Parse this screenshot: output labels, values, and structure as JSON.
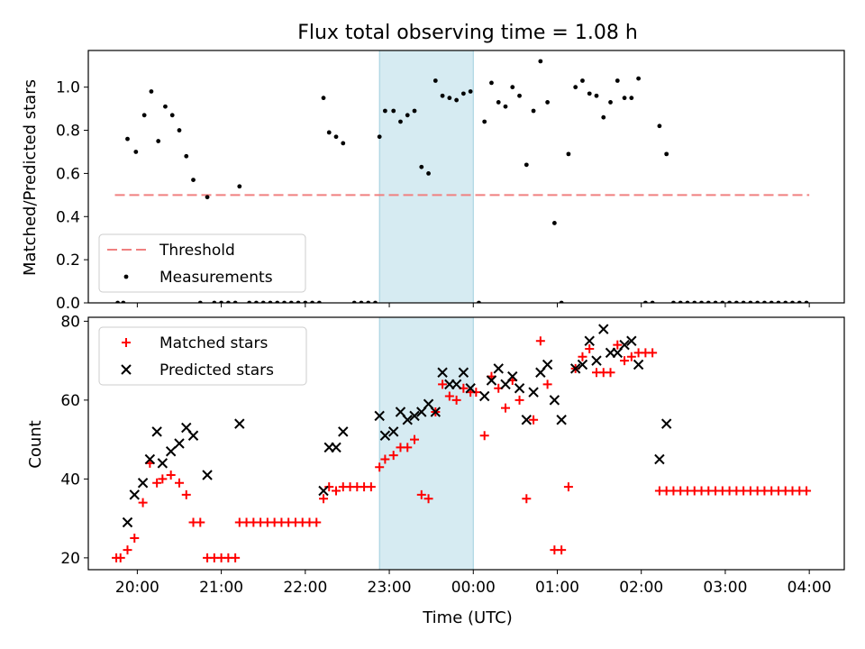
{
  "title": "Flux total observing time = 1.08 h",
  "chart_data": [
    {
      "type": "scatter",
      "panel": "top",
      "ylabel": "Matched/Predicted stars",
      "xlabel": "",
      "xlim": [
        "19:25",
        "04:25"
      ],
      "ylim": [
        0,
        1.17
      ],
      "yticks": [
        "0.0",
        "0.2",
        "0.4",
        "0.6",
        "0.8",
        "1.0"
      ],
      "xticks": [
        "20:00",
        "21:00",
        "22:00",
        "23:00",
        "00:00",
        "01:00",
        "02:00",
        "03:00",
        "04:00"
      ],
      "legend_placement": "lower-left",
      "shaded_interval": [
        "22:53",
        "00:00"
      ],
      "threshold": {
        "name": "Threshold",
        "value": 0.5,
        "x_range": [
          "19:44",
          "04:00"
        ],
        "color": "#f08080"
      },
      "series": [
        {
          "name": "Measurements",
          "color": "#000000",
          "points": [
            [
              "19:46",
              0
            ],
            [
              "19:50",
              0
            ],
            [
              "19:53",
              0.76
            ],
            [
              "19:59",
              0.7
            ],
            [
              "20:05",
              0.87
            ],
            [
              "20:10",
              0.98
            ],
            [
              "20:15",
              0.75
            ],
            [
              "20:20",
              0.91
            ],
            [
              "20:25",
              0.87
            ],
            [
              "20:30",
              0.8
            ],
            [
              "20:35",
              0.68
            ],
            [
              "20:40",
              0.57
            ],
            [
              "20:45",
              0
            ],
            [
              "20:50",
              0.49
            ],
            [
              "20:55",
              0
            ],
            [
              "21:00",
              0
            ],
            [
              "21:05",
              0
            ],
            [
              "21:10",
              0
            ],
            [
              "21:13",
              0.54
            ],
            [
              "21:20",
              0
            ],
            [
              "21:25",
              0
            ],
            [
              "21:30",
              0
            ],
            [
              "21:35",
              0
            ],
            [
              "21:40",
              0
            ],
            [
              "21:45",
              0
            ],
            [
              "21:50",
              0
            ],
            [
              "21:55",
              0
            ],
            [
              "22:00",
              0
            ],
            [
              "22:05",
              0
            ],
            [
              "22:10",
              0
            ],
            [
              "22:13",
              0.95
            ],
            [
              "22:17",
              0.79
            ],
            [
              "22:22",
              0.77
            ],
            [
              "22:27",
              0.74
            ],
            [
              "22:35",
              0
            ],
            [
              "22:40",
              0
            ],
            [
              "22:45",
              0
            ],
            [
              "22:50",
              0
            ],
            [
              "22:53",
              0.77
            ],
            [
              "22:57",
              0.89
            ],
            [
              "23:03",
              0.89
            ],
            [
              "23:08",
              0.84
            ],
            [
              "23:13",
              0.87
            ],
            [
              "23:18",
              0.89
            ],
            [
              "23:23",
              0.63
            ],
            [
              "23:28",
              0.6
            ],
            [
              "23:33",
              1.03
            ],
            [
              "23:38",
              0.96
            ],
            [
              "23:43",
              0.95
            ],
            [
              "23:48",
              0.94
            ],
            [
              "23:53",
              0.97
            ],
            [
              "23:58",
              0.98
            ],
            [
              "00:04",
              0
            ],
            [
              "00:08",
              0.84
            ],
            [
              "00:13",
              1.02
            ],
            [
              "00:18",
              0.93
            ],
            [
              "00:23",
              0.91
            ],
            [
              "00:28",
              1.0
            ],
            [
              "00:33",
              0.96
            ],
            [
              "00:38",
              0.64
            ],
            [
              "00:43",
              0.89
            ],
            [
              "00:48",
              1.12
            ],
            [
              "00:53",
              0.93
            ],
            [
              "00:58",
              0.37
            ],
            [
              "01:03",
              0
            ],
            [
              "01:08",
              0.69
            ],
            [
              "01:13",
              1.0
            ],
            [
              "01:18",
              1.03
            ],
            [
              "01:23",
              0.97
            ],
            [
              "01:28",
              0.96
            ],
            [
              "01:33",
              0.86
            ],
            [
              "01:38",
              0.93
            ],
            [
              "01:43",
              1.03
            ],
            [
              "01:48",
              0.95
            ],
            [
              "01:53",
              0.95
            ],
            [
              "01:58",
              1.04
            ],
            [
              "02:03",
              0
            ],
            [
              "02:08",
              0
            ],
            [
              "02:13",
              0.82
            ],
            [
              "02:18",
              0.69
            ],
            [
              "02:23",
              0
            ],
            [
              "02:28",
              0
            ],
            [
              "02:33",
              0
            ],
            [
              "02:38",
              0
            ],
            [
              "02:43",
              0
            ],
            [
              "02:48",
              0
            ],
            [
              "02:53",
              0
            ],
            [
              "02:58",
              0
            ],
            [
              "03:03",
              0
            ],
            [
              "03:08",
              0
            ],
            [
              "03:13",
              0
            ],
            [
              "03:18",
              0
            ],
            [
              "03:23",
              0
            ],
            [
              "03:28",
              0
            ],
            [
              "03:33",
              0
            ],
            [
              "03:38",
              0
            ],
            [
              "03:43",
              0
            ],
            [
              "03:48",
              0
            ],
            [
              "03:53",
              0
            ],
            [
              "03:58",
              0
            ]
          ]
        }
      ]
    },
    {
      "type": "scatter",
      "panel": "bottom",
      "ylabel": "Count",
      "xlabel": "Time (UTC)",
      "xlim": [
        "19:25",
        "04:25"
      ],
      "ylim": [
        17,
        81
      ],
      "yticks": [
        "20",
        "40",
        "60",
        "80"
      ],
      "xticks": [
        "20:00",
        "21:00",
        "22:00",
        "23:00",
        "00:00",
        "01:00",
        "02:00",
        "03:00",
        "04:00"
      ],
      "legend_placement": "upper-left",
      "shaded_interval": [
        "22:53",
        "00:00"
      ],
      "series": [
        {
          "name": "Matched stars",
          "marker": "plus",
          "color": "#ff0000",
          "points": [
            [
              "19:45",
              20
            ],
            [
              "19:48",
              20
            ],
            [
              "19:53",
              22
            ],
            [
              "19:58",
              25
            ],
            [
              "20:04",
              34
            ],
            [
              "20:09",
              44
            ],
            [
              "20:14",
              39
            ],
            [
              "20:18",
              40
            ],
            [
              "20:24",
              41
            ],
            [
              "20:30",
              39
            ],
            [
              "20:35",
              36
            ],
            [
              "20:40",
              29
            ],
            [
              "20:45",
              29
            ],
            [
              "20:50",
              20
            ],
            [
              "20:55",
              20
            ],
            [
              "21:00",
              20
            ],
            [
              "21:05",
              20
            ],
            [
              "21:10",
              20
            ],
            [
              "21:13",
              29
            ],
            [
              "21:18",
              29
            ],
            [
              "21:23",
              29
            ],
            [
              "21:28",
              29
            ],
            [
              "21:33",
              29
            ],
            [
              "21:38",
              29
            ],
            [
              "21:43",
              29
            ],
            [
              "21:48",
              29
            ],
            [
              "21:53",
              29
            ],
            [
              "21:58",
              29
            ],
            [
              "22:03",
              29
            ],
            [
              "22:08",
              29
            ],
            [
              "22:13",
              35
            ],
            [
              "22:17",
              38
            ],
            [
              "22:22",
              37
            ],
            [
              "22:27",
              38
            ],
            [
              "22:32",
              38
            ],
            [
              "22:37",
              38
            ],
            [
              "22:42",
              38
            ],
            [
              "22:47",
              38
            ],
            [
              "22:53",
              43
            ],
            [
              "22:57",
              45
            ],
            [
              "23:03",
              46
            ],
            [
              "23:08",
              48
            ],
            [
              "23:13",
              48
            ],
            [
              "23:18",
              50
            ],
            [
              "23:23",
              36
            ],
            [
              "23:28",
              35
            ],
            [
              "23:33",
              57
            ],
            [
              "23:38",
              64
            ],
            [
              "23:43",
              61
            ],
            [
              "23:48",
              60
            ],
            [
              "23:53",
              63
            ],
            [
              "23:58",
              62
            ],
            [
              "00:02",
              62
            ],
            [
              "00:08",
              51
            ],
            [
              "00:13",
              66
            ],
            [
              "00:18",
              63
            ],
            [
              "00:23",
              58
            ],
            [
              "00:28",
              65
            ],
            [
              "00:33",
              60
            ],
            [
              "00:38",
              35
            ],
            [
              "00:43",
              55
            ],
            [
              "00:48",
              75
            ],
            [
              "00:53",
              64
            ],
            [
              "00:58",
              22
            ],
            [
              "01:03",
              22
            ],
            [
              "01:08",
              38
            ],
            [
              "01:13",
              68
            ],
            [
              "01:18",
              71
            ],
            [
              "01:23",
              73
            ],
            [
              "01:28",
              67
            ],
            [
              "01:33",
              67
            ],
            [
              "01:38",
              67
            ],
            [
              "01:43",
              74
            ],
            [
              "01:48",
              70
            ],
            [
              "01:53",
              71
            ],
            [
              "01:58",
              72
            ],
            [
              "02:03",
              72
            ],
            [
              "02:08",
              72
            ],
            [
              "02:13",
              37
            ],
            [
              "02:18",
              37
            ],
            [
              "02:23",
              37
            ],
            [
              "02:28",
              37
            ],
            [
              "02:33",
              37
            ],
            [
              "02:38",
              37
            ],
            [
              "02:43",
              37
            ],
            [
              "02:48",
              37
            ],
            [
              "02:53",
              37
            ],
            [
              "02:58",
              37
            ],
            [
              "03:03",
              37
            ],
            [
              "03:08",
              37
            ],
            [
              "03:13",
              37
            ],
            [
              "03:18",
              37
            ],
            [
              "03:23",
              37
            ],
            [
              "03:28",
              37
            ],
            [
              "03:33",
              37
            ],
            [
              "03:38",
              37
            ],
            [
              "03:43",
              37
            ],
            [
              "03:48",
              37
            ],
            [
              "03:53",
              37
            ],
            [
              "03:58",
              37
            ]
          ]
        },
        {
          "name": "Predicted stars",
          "marker": "x",
          "color": "#000000",
          "points": [
            [
              "19:53",
              29
            ],
            [
              "19:58",
              36
            ],
            [
              "20:04",
              39
            ],
            [
              "20:09",
              45
            ],
            [
              "20:14",
              52
            ],
            [
              "20:18",
              44
            ],
            [
              "20:24",
              47
            ],
            [
              "20:30",
              49
            ],
            [
              "20:35",
              53
            ],
            [
              "20:40",
              51
            ],
            [
              "20:50",
              41
            ],
            [
              "21:13",
              54
            ],
            [
              "22:13",
              37
            ],
            [
              "22:17",
              48
            ],
            [
              "22:22",
              48
            ],
            [
              "22:27",
              52
            ],
            [
              "22:53",
              56
            ],
            [
              "22:57",
              51
            ],
            [
              "23:03",
              52
            ],
            [
              "23:08",
              57
            ],
            [
              "23:13",
              55
            ],
            [
              "23:18",
              56
            ],
            [
              "23:23",
              57
            ],
            [
              "23:28",
              59
            ],
            [
              "23:33",
              57
            ],
            [
              "23:38",
              67
            ],
            [
              "23:43",
              64
            ],
            [
              "23:48",
              64
            ],
            [
              "23:53",
              67
            ],
            [
              "23:58",
              63
            ],
            [
              "00:08",
              61
            ],
            [
              "00:13",
              65
            ],
            [
              "00:18",
              68
            ],
            [
              "00:23",
              64
            ],
            [
              "00:28",
              66
            ],
            [
              "00:33",
              63
            ],
            [
              "00:38",
              55
            ],
            [
              "00:43",
              62
            ],
            [
              "00:48",
              67
            ],
            [
              "00:53",
              69
            ],
            [
              "00:58",
              60
            ],
            [
              "01:03",
              55
            ],
            [
              "01:13",
              68
            ],
            [
              "01:18",
              69
            ],
            [
              "01:23",
              75
            ],
            [
              "01:28",
              70
            ],
            [
              "01:33",
              78
            ],
            [
              "01:38",
              72
            ],
            [
              "01:43",
              72
            ],
            [
              "01:48",
              74
            ],
            [
              "01:53",
              75
            ],
            [
              "01:58",
              69
            ],
            [
              "02:13",
              45
            ],
            [
              "02:18",
              54
            ]
          ]
        }
      ]
    }
  ]
}
